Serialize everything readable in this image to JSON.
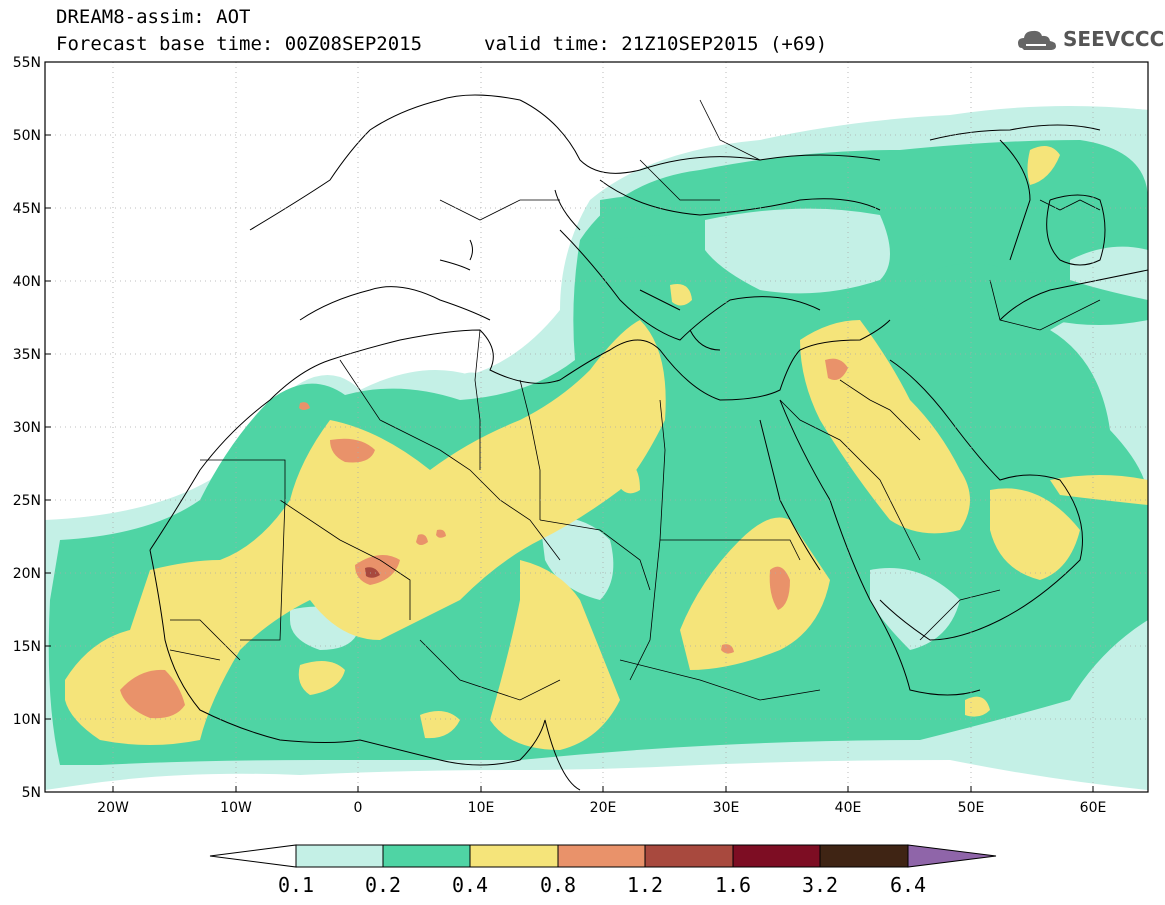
{
  "title": {
    "line1": "DREAM8-assim: AOT",
    "base_time": "Forecast base time: 00Z08SEP2015",
    "valid_time": "valid time: 21Z10SEP2015 (+69)"
  },
  "logo": {
    "text": "SEEVCCC",
    "icon": "cloud-icon"
  },
  "axes": {
    "lat_labels": [
      "55N",
      "50N",
      "45N",
      "40N",
      "35N",
      "30N",
      "25N",
      "20N",
      "15N",
      "10N",
      "5N"
    ],
    "lon_labels": [
      "20W",
      "10W",
      "0",
      "10E",
      "20E",
      "30E",
      "40E",
      "50E",
      "60E"
    ],
    "lon_range": [
      -25,
      65
    ],
    "lat_range": [
      5,
      55
    ]
  },
  "colorbar": {
    "labels": [
      "0.1",
      "0.2",
      "0.4",
      "0.8",
      "1.2",
      "1.6",
      "3.2",
      "6.4"
    ],
    "colors": [
      "#ffffff",
      "#c4f0e6",
      "#4fd4a4",
      "#f5e47a",
      "#e9926a",
      "#a8493e",
      "#7d0d23",
      "#3f2414",
      "#8f65a9"
    ]
  }
}
